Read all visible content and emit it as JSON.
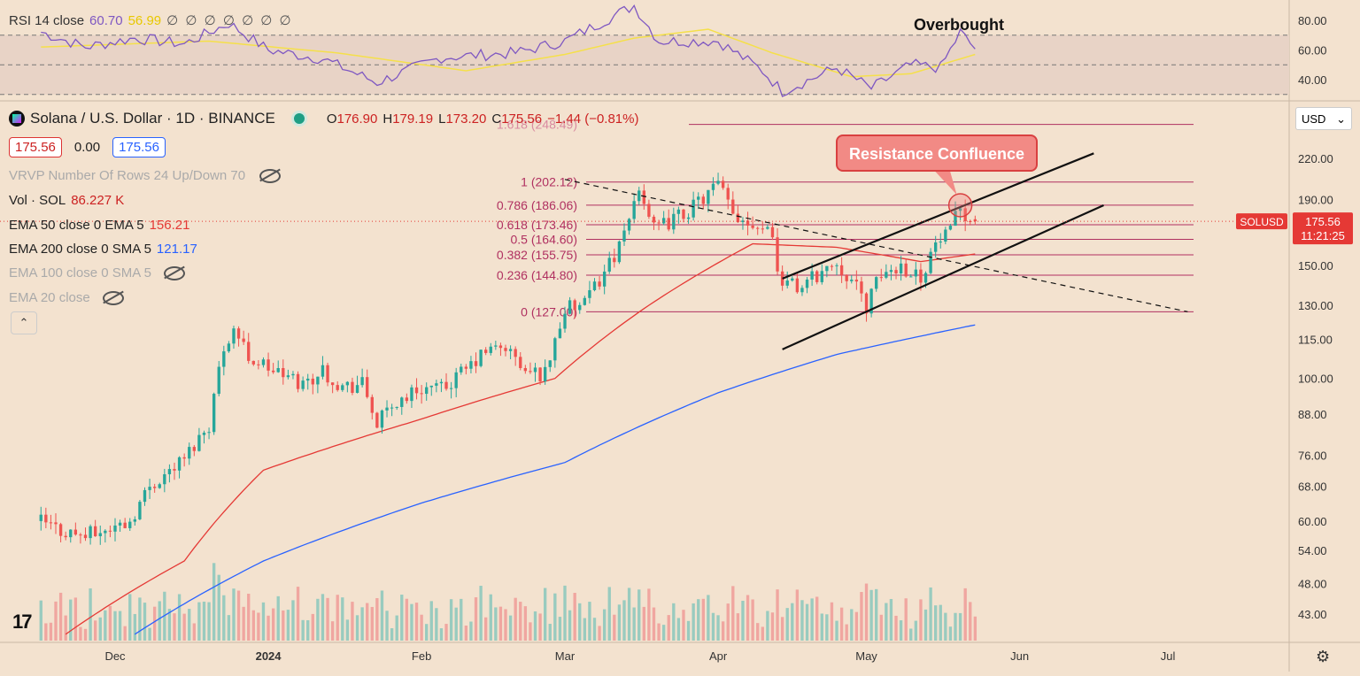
{
  "rsi_legend": {
    "label": "RSI 14 close",
    "value1": "60.70",
    "value2": "56.99",
    "nulls": "∅ ∅ ∅ ∅ ∅ ∅ ∅"
  },
  "rsi_annotation": "Overbought",
  "rsi_axis": [
    "80.00",
    "60.00",
    "40.00"
  ],
  "symbol": {
    "title": "Solana / U.S. Dollar · 1D · BINANCE",
    "o_label": "O",
    "o": "176.90",
    "h_label": "H",
    "h": "179.19",
    "l_label": "L",
    "l": "173.20",
    "c_label": "C",
    "c": "175.56",
    "change": "−1.44 (−0.81%)"
  },
  "quote_pills": {
    "bid": "175.56",
    "spread": "0.00",
    "ask": "175.56"
  },
  "indicators": {
    "vrvp": "VRVP Number Of Rows 24 Up/Down 70",
    "vol_label": "Vol · SOL",
    "vol_value": "86.227 K",
    "ema50_label": "EMA 50 close 0 EMA 5",
    "ema50_value": "156.21",
    "ema200_label": "EMA 200 close 0 SMA 5",
    "ema200_value": "121.17",
    "ema100_label": "EMA 100 close 0 SMA 5",
    "ema20_label": "EMA 20 close"
  },
  "currency": "USD",
  "price_tag": {
    "symbol": "SOLUSD",
    "price": "175.56",
    "countdown": "11:21:25"
  },
  "annotation": "Resistance Confluence",
  "colors": {
    "up": "#26a69a",
    "down": "#ef5350",
    "ema50": "#e53935",
    "ema200": "#2962ff",
    "rsi": "#7e57c2",
    "rsi_ma": "#f5e04a",
    "fib": "#b03060"
  },
  "chart_data": {
    "type": "candlestick",
    "title": "Solana / U.S. Dollar · 1D · BINANCE",
    "y_scale": "log",
    "ylim": [
      40,
      260
    ],
    "y_ticks": [
      "220.00",
      "190.00",
      "150.00",
      "130.00",
      "115.00",
      "100.00",
      "88.00",
      "76.00",
      "68.00",
      "60.00",
      "54.00",
      "48.00",
      "43.00"
    ],
    "y_tick_values": [
      220,
      190,
      150,
      130,
      115,
      100,
      88,
      76,
      68,
      60,
      54,
      48,
      43
    ],
    "x_ticks": [
      {
        "label": "Dec",
        "date": "2023-12-01"
      },
      {
        "label": "2024",
        "date": "2024-01-01"
      },
      {
        "label": "Feb",
        "date": "2024-02-01"
      },
      {
        "label": "Mar",
        "date": "2024-03-01"
      },
      {
        "label": "Apr",
        "date": "2024-04-01"
      },
      {
        "label": "May",
        "date": "2024-05-01"
      },
      {
        "label": "Jun",
        "date": "2024-06-01"
      },
      {
        "label": "Jul",
        "date": "2024-07-01"
      }
    ],
    "fib_levels": [
      {
        "ratio": "1.618",
        "price": 248.49,
        "label": "1.618 (248.49)"
      },
      {
        "ratio": "1",
        "price": 202.12,
        "label": "1 (202.12)"
      },
      {
        "ratio": "0.786",
        "price": 186.06,
        "label": "0.786 (186.06)"
      },
      {
        "ratio": "0.618",
        "price": 173.46,
        "label": "0.618 (173.46)"
      },
      {
        "ratio": "0.5",
        "price": 164.6,
        "label": "0.5 (164.60)"
      },
      {
        "ratio": "0.382",
        "price": 155.75,
        "label": "0.382 (155.75)"
      },
      {
        "ratio": "0.236",
        "price": 144.8,
        "label": "0.236 (144.80)"
      },
      {
        "ratio": "0",
        "price": 127.0,
        "label": "0 (127.00)"
      }
    ],
    "trendlines": [
      {
        "name": "channel-upper",
        "style": "solid",
        "from": {
          "date": "2024-04-14",
          "price": 143
        },
        "to": {
          "date": "2024-06-16",
          "price": 224
        }
      },
      {
        "name": "channel-lower",
        "style": "solid",
        "from": {
          "date": "2024-04-14",
          "price": 111
        },
        "to": {
          "date": "2024-06-18",
          "price": 186
        }
      },
      {
        "name": "descending-resistance",
        "style": "dashed",
        "from": {
          "date": "2024-03-01",
          "price": 204
        },
        "to": {
          "date": "2024-07-05",
          "price": 127
        }
      }
    ],
    "ohlc_anchor_closes": [
      [
        "2023-11-16",
        60
      ],
      [
        "2023-11-20",
        58
      ],
      [
        "2023-11-25",
        57
      ],
      [
        "2023-11-29",
        58
      ],
      [
        "2023-12-04",
        60
      ],
      [
        "2023-12-08",
        68
      ],
      [
        "2023-12-12",
        72
      ],
      [
        "2023-12-15",
        75
      ],
      [
        "2023-12-20",
        85
      ],
      [
        "2023-12-23",
        112
      ],
      [
        "2023-12-25",
        120
      ],
      [
        "2023-12-28",
        108
      ],
      [
        "2024-01-03",
        102
      ],
      [
        "2024-01-08",
        98
      ],
      [
        "2024-01-12",
        103
      ],
      [
        "2024-01-16",
        97
      ],
      [
        "2024-01-20",
        98
      ],
      [
        "2024-01-23",
        85
      ],
      [
        "2024-01-27",
        92
      ],
      [
        "2024-02-01",
        97
      ],
      [
        "2024-02-05",
        96
      ],
      [
        "2024-02-10",
        103
      ],
      [
        "2024-02-14",
        110
      ],
      [
        "2024-02-18",
        112
      ],
      [
        "2024-02-22",
        102
      ],
      [
        "2024-02-26",
        102
      ],
      [
        "2024-03-01",
        128
      ],
      [
        "2024-03-05",
        130
      ],
      [
        "2024-03-09",
        147
      ],
      [
        "2024-03-13",
        165
      ],
      [
        "2024-03-16",
        200
      ],
      [
        "2024-03-19",
        170
      ],
      [
        "2024-03-22",
        175
      ],
      [
        "2024-03-27",
        185
      ],
      [
        "2024-04-01",
        200
      ],
      [
        "2024-04-04",
        180
      ],
      [
        "2024-04-08",
        175
      ],
      [
        "2024-04-12",
        170
      ],
      [
        "2024-04-13",
        145
      ],
      [
        "2024-04-17",
        138
      ],
      [
        "2024-04-21",
        145
      ],
      [
        "2024-04-25",
        152
      ],
      [
        "2024-04-28",
        142
      ],
      [
        "2024-05-01",
        130
      ],
      [
        "2024-05-04",
        145
      ],
      [
        "2024-05-08",
        150
      ],
      [
        "2024-05-12",
        144
      ],
      [
        "2024-05-15",
        162
      ],
      [
        "2024-05-18",
        168
      ],
      [
        "2024-05-20",
        186
      ],
      [
        "2024-05-22",
        176
      ],
      [
        "2024-05-23",
        175.56
      ]
    ],
    "ema50_anchor": [
      [
        "2023-11-21",
        40
      ],
      [
        "2023-12-15",
        52
      ],
      [
        "2023-12-31",
        72
      ],
      [
        "2024-01-31",
        86
      ],
      [
        "2024-02-28",
        100
      ],
      [
        "2024-03-18",
        130
      ],
      [
        "2024-04-08",
        162
      ],
      [
        "2024-04-25",
        160
      ],
      [
        "2024-05-12",
        152
      ],
      [
        "2024-05-23",
        156.21
      ]
    ],
    "ema200_anchor": [
      [
        "2023-12-05",
        40
      ],
      [
        "2023-12-31",
        52
      ],
      [
        "2024-02-01",
        64
      ],
      [
        "2024-03-01",
        74
      ],
      [
        "2024-04-01",
        95
      ],
      [
        "2024-04-25",
        109
      ],
      [
        "2024-05-23",
        121.17
      ]
    ],
    "rsi_anchor": [
      [
        "2023-11-16",
        72
      ],
      [
        "2023-11-25",
        62
      ],
      [
        "2023-12-05",
        68
      ],
      [
        "2023-12-15",
        64
      ],
      [
        "2023-12-24",
        78
      ],
      [
        "2024-01-01",
        60
      ],
      [
        "2024-01-12",
        54
      ],
      [
        "2024-01-23",
        38
      ],
      [
        "2024-02-05",
        55
      ],
      [
        "2024-02-20",
        58
      ],
      [
        "2024-03-01",
        66
      ],
      [
        "2024-03-15",
        90
      ],
      [
        "2024-03-20",
        66
      ],
      [
        "2024-04-01",
        66
      ],
      [
        "2024-04-10",
        46
      ],
      [
        "2024-04-14",
        32
      ],
      [
        "2024-04-25",
        48
      ],
      [
        "2024-05-02",
        34
      ],
      [
        "2024-05-10",
        50
      ],
      [
        "2024-05-16",
        48
      ],
      [
        "2024-05-20",
        72
      ],
      [
        "2024-05-23",
        60.7
      ]
    ],
    "rsi_ma_anchor": [
      [
        "2023-11-16",
        62
      ],
      [
        "2023-12-20",
        66
      ],
      [
        "2024-01-15",
        58
      ],
      [
        "2024-02-10",
        46
      ],
      [
        "2024-03-01",
        57
      ],
      [
        "2024-03-15",
        68
      ],
      [
        "2024-03-30",
        74
      ],
      [
        "2024-04-12",
        58
      ],
      [
        "2024-04-28",
        42
      ],
      [
        "2024-05-10",
        44
      ],
      [
        "2024-05-23",
        56.99
      ]
    ],
    "rsi_ylim": [
      20,
      100
    ],
    "rsi_levels": [
      70,
      50,
      30
    ]
  }
}
